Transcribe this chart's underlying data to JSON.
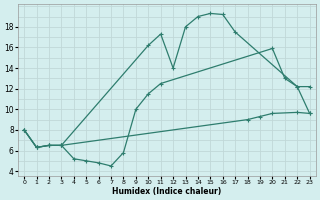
{
  "xlabel": "Humidex (Indice chaleur)",
  "line_color": "#2e7d6e",
  "bg_color": "#d4eeee",
  "grid_color": "#c0d8d8",
  "xlim": [
    -0.5,
    23.5
  ],
  "ylim": [
    3.5,
    20.2
  ],
  "xticks": [
    0,
    1,
    2,
    3,
    4,
    5,
    6,
    7,
    8,
    9,
    10,
    11,
    12,
    13,
    14,
    15,
    16,
    17,
    18,
    19,
    20,
    21,
    22,
    23
  ],
  "yticks": [
    4,
    6,
    8,
    10,
    12,
    14,
    16,
    18
  ],
  "line1_x": [
    0,
    1,
    2,
    3,
    10,
    11,
    12,
    13,
    14,
    15,
    16,
    17,
    22,
    23
  ],
  "line1_y": [
    8.0,
    6.3,
    6.5,
    6.5,
    16.2,
    17.3,
    14.0,
    18.0,
    19.0,
    19.3,
    19.2,
    17.5,
    12.2,
    12.2
  ],
  "line2_x": [
    0,
    1,
    2,
    3,
    18,
    19,
    20,
    22,
    23
  ],
  "line2_y": [
    8.0,
    6.3,
    6.5,
    6.5,
    9.0,
    9.3,
    9.6,
    9.7,
    9.6
  ],
  "line3_x": [
    0,
    1,
    2,
    3,
    4,
    5,
    6,
    7,
    8,
    9,
    10,
    11,
    20,
    21,
    22,
    23
  ],
  "line3_y": [
    8.0,
    6.3,
    6.5,
    6.5,
    5.2,
    5.0,
    4.8,
    4.5,
    5.8,
    10.0,
    11.5,
    12.5,
    15.9,
    13.0,
    12.2,
    9.6
  ]
}
